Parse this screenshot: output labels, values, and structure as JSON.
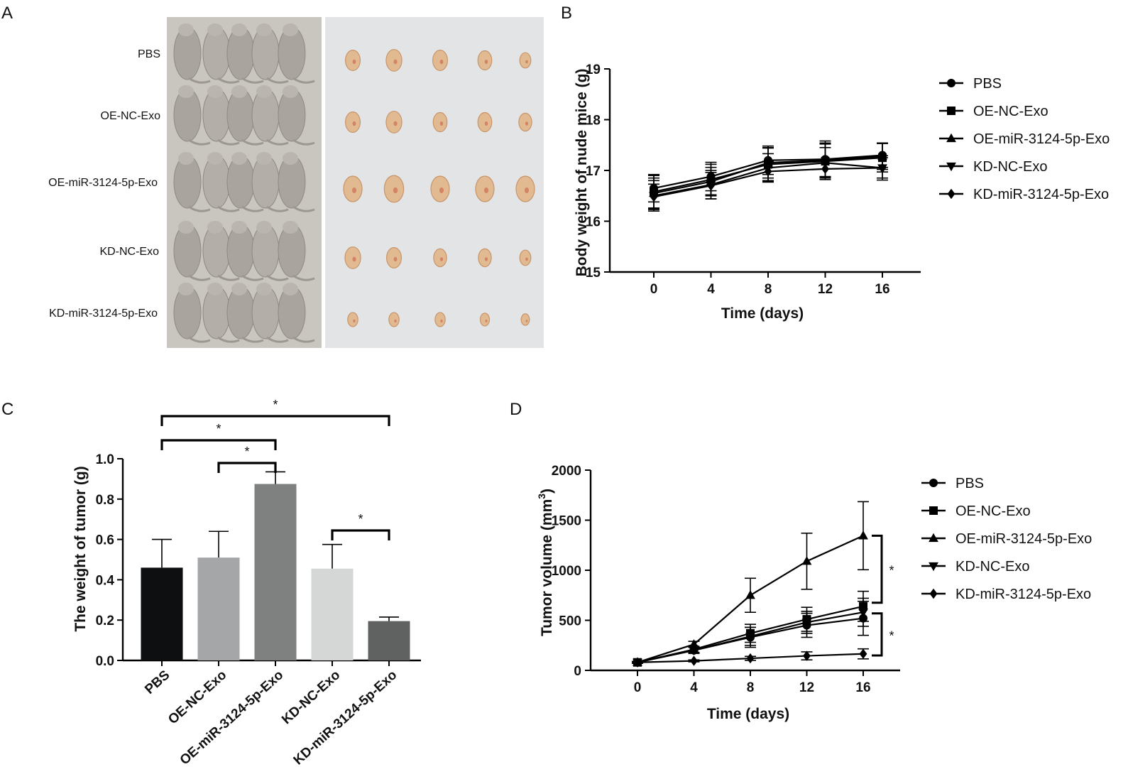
{
  "panels": {
    "a": {
      "label": "A"
    },
    "b": {
      "label": "B"
    },
    "c": {
      "label": "C"
    },
    "d": {
      "label": "D"
    }
  },
  "photo": {
    "group_labels": [
      "PBS",
      "OE-NC-Exo",
      "OE-miR-3124-5p-Exo",
      "KD-NC-Exo",
      "KD-miR-3124-5p-Exo"
    ],
    "tumor_relative_size": [
      [
        0.8,
        0.85,
        0.8,
        0.75,
        0.6
      ],
      [
        0.8,
        0.85,
        0.75,
        0.75,
        0.7
      ],
      [
        1.0,
        1.05,
        1.0,
        1.0,
        1.0
      ],
      [
        0.85,
        0.8,
        0.7,
        0.7,
        0.6
      ],
      [
        0.55,
        0.55,
        0.55,
        0.5,
        0.45
      ]
    ]
  },
  "chart_data": [
    {
      "type": "line",
      "title": "",
      "xlabel": "Time (days)",
      "ylabel": "Body weight of nude mice (g)",
      "x": [
        0,
        4,
        8,
        12,
        16
      ],
      "xticks": [
        "0",
        "4",
        "8",
        "12",
        "16"
      ],
      "ylim": [
        15,
        19
      ],
      "yticks": [
        "15",
        "16",
        "17",
        "18",
        "19"
      ],
      "series": [
        {
          "name": "PBS",
          "marker": "circle",
          "values": [
            16.65,
            16.88,
            17.2,
            17.22,
            17.3
          ],
          "errors": [
            0.27,
            0.28,
            0.28,
            0.36,
            0.24
          ]
        },
        {
          "name": "OE-NC-Exo",
          "marker": "square",
          "values": [
            16.58,
            16.82,
            17.12,
            17.18,
            17.25
          ],
          "errors": [
            0.32,
            0.3,
            0.32,
            0.36,
            0.28
          ]
        },
        {
          "name": "OE-miR-3124-5p-Exo",
          "marker": "triangle-up",
          "values": [
            16.55,
            16.78,
            17.15,
            17.2,
            17.28
          ],
          "errors": [
            0.3,
            0.28,
            0.3,
            0.32,
            0.26
          ]
        },
        {
          "name": "KD-NC-Exo",
          "marker": "triangle-down",
          "values": [
            16.5,
            16.72,
            17.05,
            17.15,
            17.05
          ],
          "errors": [
            0.3,
            0.28,
            0.28,
            0.3,
            0.24
          ]
        },
        {
          "name": "KD-miR-3124-5p-Exo",
          "marker": "diamond",
          "values": [
            16.48,
            16.7,
            16.98,
            17.03,
            17.05
          ],
          "errors": [
            0.25,
            0.26,
            0.2,
            0.18,
            0.2
          ]
        }
      ]
    },
    {
      "type": "bar",
      "title": "",
      "xlabel": "",
      "ylabel": "The weight of tumor (g)",
      "categories": [
        "PBS",
        "OE-NC-Exo",
        "OE-miR-3124-5p-Exo",
        "KD-NC-Exo",
        "KD-miR-3124-5p-Exo"
      ],
      "values": [
        0.46,
        0.51,
        0.875,
        0.455,
        0.195
      ],
      "errors": [
        0.14,
        0.13,
        0.06,
        0.12,
        0.02
      ],
      "colors": [
        "#0d0f10",
        "#a4a6a8",
        "#7f8181",
        "#d5d7d7",
        "#606262"
      ],
      "ylim": [
        0,
        1.0
      ],
      "yticks": [
        "0.0",
        "0.2",
        "0.4",
        "0.6",
        "0.8",
        "1.0"
      ],
      "significance": [
        {
          "from": 0,
          "to": 4,
          "label": "*"
        },
        {
          "from": 0,
          "to": 2,
          "label": "*"
        },
        {
          "from": 1,
          "to": 2,
          "label": "*"
        },
        {
          "from": 3,
          "to": 4,
          "label": "*"
        }
      ]
    },
    {
      "type": "line",
      "title": "",
      "xlabel": "Time (days)",
      "ylabel": "Tumor volume (mm",
      "ylabel_sup": "3",
      "ylabel_end": ")",
      "x": [
        0,
        4,
        8,
        12,
        16
      ],
      "xticks": [
        "0",
        "4",
        "8",
        "12",
        "16"
      ],
      "ylim": [
        0,
        2000
      ],
      "yticks": [
        "0",
        "500",
        "1000",
        "1500",
        "2000"
      ],
      "series": [
        {
          "name": "PBS",
          "marker": "circle",
          "values": [
            80,
            200,
            330,
            450,
            520
          ],
          "errors": [
            10,
            30,
            100,
            120,
            170
          ]
        },
        {
          "name": "OE-NC-Exo",
          "marker": "square",
          "values": [
            80,
            210,
            370,
            510,
            640
          ],
          "errors": [
            10,
            30,
            90,
            120,
            150
          ]
        },
        {
          "name": "OE-miR-3124-5p-Exo",
          "marker": "triangle-up",
          "values": [
            80,
            260,
            750,
            1090,
            1345
          ],
          "errors": [
            10,
            30,
            170,
            280,
            340
          ]
        },
        {
          "name": "KD-NC-Exo",
          "marker": "triangle-down",
          "values": [
            80,
            200,
            340,
            480,
            580
          ],
          "errors": [
            10,
            30,
            90,
            110,
            140
          ]
        },
        {
          "name": "KD-miR-3124-5p-Exo",
          "marker": "diamond",
          "values": [
            80,
            95,
            120,
            145,
            165
          ],
          "errors": [
            5,
            10,
            20,
            40,
            50
          ]
        }
      ],
      "significance": [
        {
          "from_series": 2,
          "to_series": 1,
          "label": "*"
        },
        {
          "from_series": 1,
          "to_series": 4,
          "label": "*"
        }
      ]
    }
  ]
}
